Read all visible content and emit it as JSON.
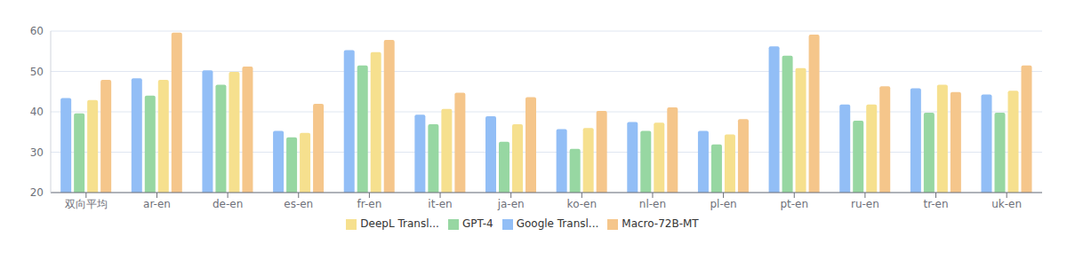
{
  "chart_data": {
    "type": "bar",
    "categories": [
      "双向平均",
      "ar-en",
      "de-en",
      "es-en",
      "fr-en",
      "it-en",
      "ja-en",
      "ko-en",
      "nl-en",
      "pl-en",
      "pt-en",
      "ru-en",
      "tr-en",
      "uk-en"
    ],
    "series": [
      {
        "name": "Google Transl...",
        "color": "#92bef6",
        "values": [
          43.4,
          48.3,
          50.3,
          35.3,
          55.3,
          39.3,
          38.9,
          35.7,
          37.5,
          35.3,
          56.2,
          41.8,
          45.8,
          44.3
        ]
      },
      {
        "name": "GPT-4",
        "color": "#97d7a2",
        "values": [
          39.6,
          44.0,
          46.7,
          33.7,
          51.5,
          36.9,
          32.6,
          30.8,
          35.3,
          31.9,
          53.9,
          37.8,
          39.8,
          39.8
        ]
      },
      {
        "name": "DeepL Transl...",
        "color": "#f6e08e",
        "values": [
          42.9,
          47.9,
          49.9,
          34.8,
          54.8,
          40.7,
          36.9,
          36.0,
          37.3,
          34.4,
          50.8,
          41.8,
          46.7,
          45.2
        ]
      },
      {
        "name": "Macro-72B-MT",
        "color": "#f5c68b",
        "values": [
          47.9,
          59.6,
          51.2,
          42.0,
          57.8,
          44.7,
          43.6,
          40.2,
          41.1,
          38.2,
          59.1,
          46.3,
          44.9,
          51.5
        ]
      }
    ],
    "ylim": [
      20,
      60
    ],
    "yticks": [
      20,
      30,
      40,
      50,
      60
    ],
    "grid": true,
    "legend": "bottom"
  }
}
